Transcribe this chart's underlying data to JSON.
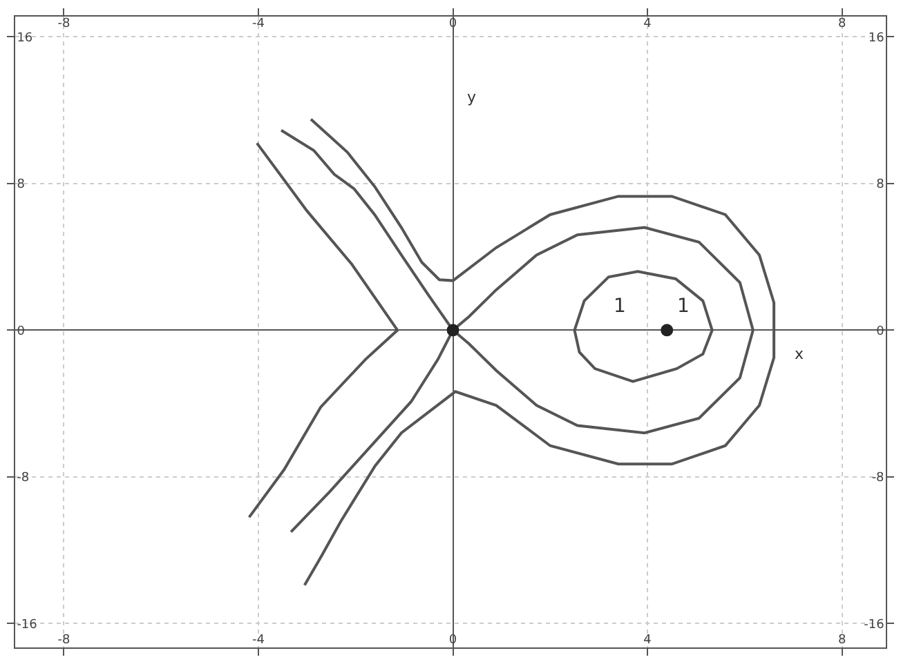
{
  "chart_data": {
    "type": "line",
    "xlim": [
      -9,
      8.9
    ],
    "ylim": [
      -17.3,
      17.1
    ],
    "xticks": [
      -8,
      -4,
      0,
      4,
      8
    ],
    "yticks": [
      -16,
      -8,
      0,
      8,
      16
    ],
    "x2lim": [
      -9,
      8.9
    ],
    "y2lim": [
      -17.3,
      17.1
    ],
    "x2ticks": [
      -8,
      -4,
      0,
      4,
      8
    ],
    "y2ticks": [
      -16,
      -8,
      0,
      8,
      16
    ],
    "grid": true,
    "line_style": "solid",
    "series": [
      {
        "color": "#555555",
        "marker": "none",
        "x": [
          -2.92,
          -2.17,
          -1.6,
          -1.06,
          -0.64,
          -0.28,
          0,
          0.89,
          2,
          3.4,
          4.5,
          5.6,
          6.3,
          6.6,
          6.6,
          6.6,
          6.3,
          5.6,
          4.5,
          3.4,
          2,
          0.89,
          0.05,
          -1.06,
          -1.6,
          -2.3,
          -2.7,
          -3.05
        ],
        "values": [
          11.5,
          9.7,
          7.8,
          5.6,
          3.7,
          2.75,
          2.7,
          4.5,
          6.3,
          7.3,
          7.3,
          6.3,
          4.1,
          1.5,
          0,
          -1.5,
          -4.1,
          -6.3,
          -7.3,
          -7.3,
          -6.3,
          -4.1,
          -3.35,
          -5.6,
          -7.4,
          -10.4,
          -12.3,
          -13.9
        ]
      },
      {
        "color": "#555555",
        "marker": "none",
        "x": [
          -3.53,
          -2.86,
          -2.44,
          -2.03,
          -1.61,
          -1.06,
          -0.5,
          0,
          0.33,
          0.89,
          1.72,
          2.56,
          3.94,
          5.06,
          5.9,
          6.17,
          5.9,
          5.06,
          3.94,
          2.56,
          1.72,
          0.89,
          0.33,
          0,
          -0.31,
          -0.86,
          -1.61,
          -2.53,
          -3.33
        ],
        "values": [
          10.9,
          9.8,
          8.5,
          7.7,
          6.3,
          4.1,
          1.9,
          0,
          0.74,
          2.2,
          4.1,
          5.2,
          5.6,
          4.8,
          2.6,
          0,
          -2.6,
          -4.8,
          -5.6,
          -5.2,
          -4.1,
          -2.2,
          -0.74,
          0,
          -1.6,
          -3.9,
          -6.1,
          -8.8,
          -11.0
        ]
      },
      {
        "color": "#555555",
        "marker": "none",
        "x": [
          -4.03,
          -3.0,
          -2.08,
          -1.14,
          -1.8,
          -2.72,
          -3.47,
          -4.19
        ],
        "values": [
          10.2,
          6.5,
          3.6,
          0,
          -1.6,
          -4.2,
          -7.6,
          -10.2
        ]
      },
      {
        "color": "#555555",
        "marker": "none",
        "x": [
          2.5,
          2.7,
          3.2,
          3.8,
          4.58,
          5.14,
          5.33
        ],
        "values": [
          0,
          1.6,
          2.9,
          3.2,
          2.8,
          1.6,
          0
        ]
      },
      {
        "color": "#555555",
        "marker": "none",
        "x": [
          2.5,
          2.6,
          2.92,
          3.7,
          4.6,
          5.14,
          5.33
        ],
        "values": [
          0,
          -1.2,
          -2.1,
          -2.8,
          -2.1,
          -1.3,
          0
        ]
      },
      {
        "type": "scatter",
        "color": "#222222",
        "marker": "circle",
        "x": [
          0,
          4.4
        ],
        "values": [
          0,
          0
        ]
      }
    ],
    "annotations": [
      "1",
      "1",
      "y",
      "x"
    ]
  }
}
